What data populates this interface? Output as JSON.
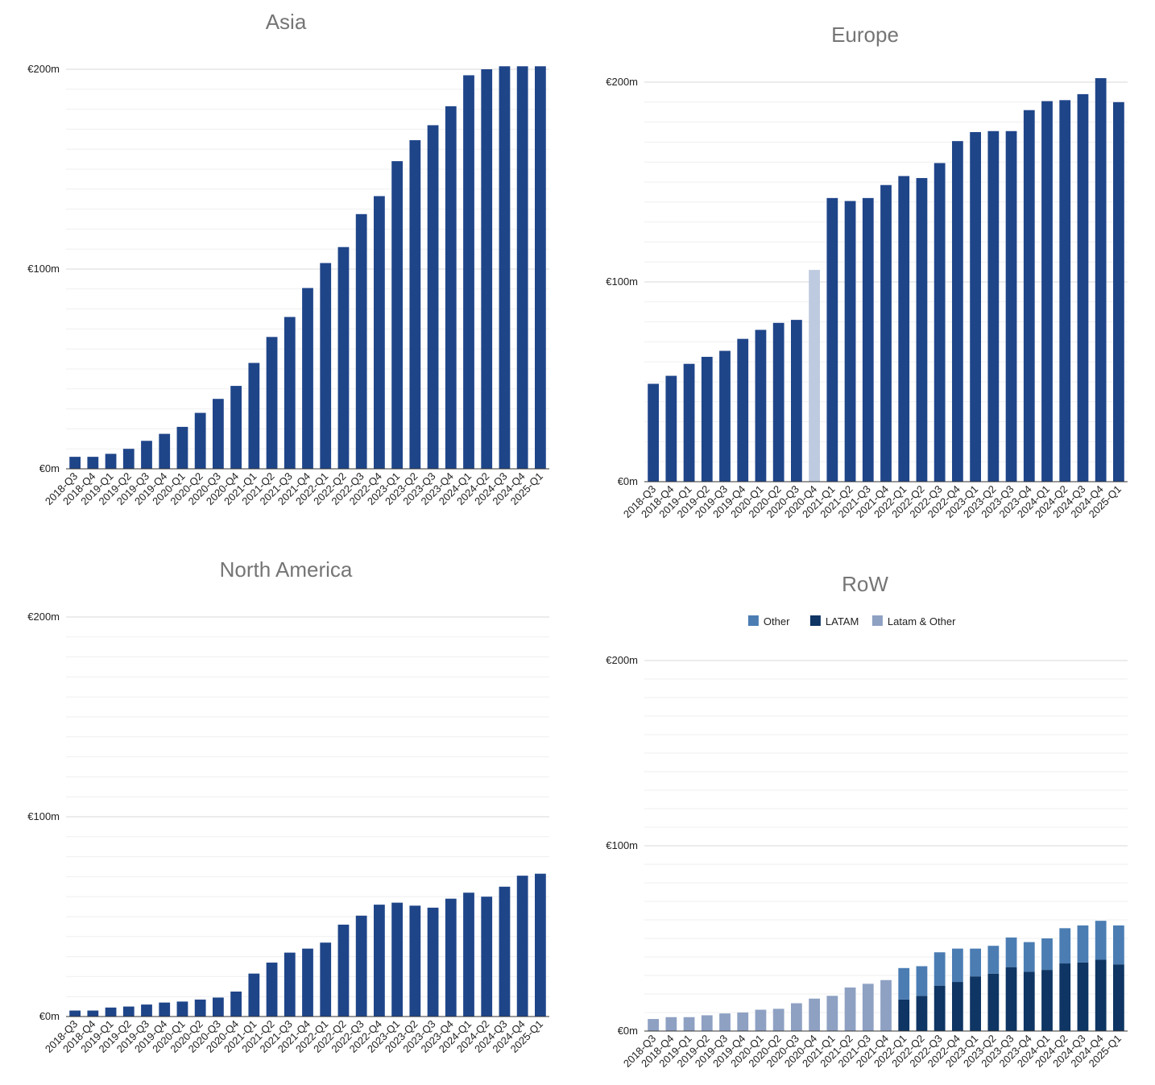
{
  "colors": {
    "bar": "#1f4589",
    "bar_light": "#bdcadf",
    "other": "#4b7db3",
    "latam": "#0e3563",
    "latam_other": "#8ea1c3",
    "grid_major": "#d8d8d8",
    "grid_minor": "#efefef",
    "title": "#757575",
    "axis": "#333333"
  },
  "chart_data": [
    {
      "type": "bar",
      "title": "Asia",
      "xlabel": "",
      "ylabel": "",
      "ylim": [
        0,
        200
      ],
      "y_ticks": [
        "€0m",
        "€100m",
        "€200m"
      ],
      "grid": true,
      "categories": [
        "2018-Q3",
        "2018-Q4",
        "2019-Q1",
        "2019-Q2",
        "2019-Q3",
        "2019-Q4",
        "2020-Q1",
        "2020-Q2",
        "2020-Q3",
        "2020-Q4",
        "2021-Q1",
        "2021-Q2",
        "2021-Q3",
        "2021-Q4",
        "2022-Q1",
        "2022-Q2",
        "2022-Q3",
        "2022-Q4",
        "2023-Q1",
        "2023-Q2",
        "2023-Q3",
        "2023-Q4",
        "2024-Q1",
        "2024-Q2",
        "2024-Q3",
        "2024-Q4",
        "2025-Q1"
      ],
      "values": [
        6,
        6,
        7.5,
        10,
        14,
        17.5,
        21,
        28,
        35,
        41.5,
        53,
        66,
        76,
        90.5,
        103,
        111,
        127.5,
        136.5,
        154,
        164.5,
        172,
        181.5,
        197,
        200,
        201.5,
        201.5,
        201.5
      ]
    },
    {
      "type": "bar",
      "title": "Europe",
      "xlabel": "",
      "ylabel": "",
      "ylim": [
        0,
        200
      ],
      "y_ticks": [
        "€0m",
        "€100m",
        "€200m"
      ],
      "grid": true,
      "highlight_index": 9,
      "categories": [
        "2018-Q3",
        "2018-Q4",
        "2019-Q1",
        "2019-Q2",
        "2019-Q3",
        "2019-Q4",
        "2020-Q1",
        "2020-Q2",
        "2020-Q3",
        "2020-Q4",
        "2021-Q1",
        "2021-Q2",
        "2021-Q3",
        "2021-Q4",
        "2022-Q1",
        "2022-Q2",
        "2022-Q3",
        "2022-Q4",
        "2023-Q1",
        "2023-Q2",
        "2023-Q3",
        "2023-Q4",
        "2024-Q1",
        "2024-Q2",
        "2024-Q3",
        "2024-Q4",
        "2025-Q1"
      ],
      "values": [
        49,
        53,
        59,
        62.5,
        65.5,
        71.5,
        76,
        79.5,
        81,
        106,
        142,
        140.5,
        142,
        148.5,
        153,
        152,
        159.5,
        170.5,
        175,
        175.5,
        175.5,
        186,
        190.5,
        191,
        194,
        202,
        190
      ]
    },
    {
      "type": "bar",
      "title": "North America",
      "xlabel": "",
      "ylabel": "",
      "ylim": [
        0,
        200
      ],
      "y_ticks": [
        "€0m",
        "€100m",
        "€200m"
      ],
      "grid": true,
      "categories": [
        "2018-Q3",
        "2018-Q4",
        "2019-Q1",
        "2019-Q2",
        "2019-Q3",
        "2019-Q4",
        "2020-Q1",
        "2020-Q2",
        "2020-Q3",
        "2020-Q4",
        "2021-Q1",
        "2021-Q2",
        "2021-Q3",
        "2021-Q4",
        "2022-Q1",
        "2022-Q2",
        "2022-Q3",
        "2022-Q4",
        "2023-Q1",
        "2023-Q2",
        "2023-Q3",
        "2023-Q4",
        "2024-Q1",
        "2024-Q2",
        "2024-Q3",
        "2024-Q4",
        "2025-Q1"
      ],
      "values": [
        3,
        3,
        4.5,
        5,
        6,
        7,
        7.5,
        8.5,
        9.5,
        12.5,
        21.5,
        27,
        32,
        34,
        37,
        46,
        50.5,
        56,
        57,
        55.5,
        54.5,
        59,
        62,
        60,
        65,
        70.5,
        71.5
      ]
    },
    {
      "type": "bar",
      "stacked": true,
      "title": "RoW",
      "xlabel": "",
      "ylabel": "",
      "ylim": [
        0,
        200
      ],
      "y_ticks": [
        "€0m",
        "€100m",
        "€200m"
      ],
      "grid": true,
      "legend_position": "top",
      "categories": [
        "2018-Q3",
        "2018-Q4",
        "2019-Q1",
        "2019-Q2",
        "2019-Q3",
        "2019-Q4",
        "2020-Q1",
        "2020-Q2",
        "2020-Q3",
        "2020-Q4",
        "2021-Q1",
        "2021-Q2",
        "2021-Q3",
        "2021-Q4",
        "2022-Q1",
        "2022-Q2",
        "2022-Q3",
        "2022-Q4",
        "2023-Q1",
        "2023-Q2",
        "2023-Q3",
        "2023-Q4",
        "2024-Q1",
        "2024-Q2",
        "2024-Q3",
        "2024-Q4",
        "2025-Q1"
      ],
      "series": [
        {
          "name": "Other",
          "color_key": "other",
          "values": [
            0,
            0,
            0,
            0,
            0,
            0,
            0,
            0,
            0,
            0,
            0,
            0,
            0,
            0,
            17,
            16,
            18,
            18,
            15,
            15,
            16,
            16,
            17,
            19,
            20,
            21,
            21
          ]
        },
        {
          "name": "LATAM",
          "color_key": "latam",
          "values": [
            0,
            0,
            0,
            0,
            0,
            0,
            0,
            0,
            0,
            0,
            0,
            0,
            0,
            0,
            17,
            19,
            24.5,
            26.5,
            29.5,
            31,
            34.5,
            32,
            33,
            36.5,
            37,
            38.5,
            36
          ]
        },
        {
          "name": "Latam & Other",
          "color_key": "latam_other",
          "values": [
            6.5,
            7.5,
            7.5,
            8.5,
            9.5,
            10,
            11.5,
            12,
            15,
            17.5,
            19,
            23.5,
            25.5,
            27.5,
            0,
            0,
            0,
            0,
            0,
            0,
            0,
            0,
            0,
            0,
            0,
            0,
            0
          ]
        }
      ]
    }
  ]
}
